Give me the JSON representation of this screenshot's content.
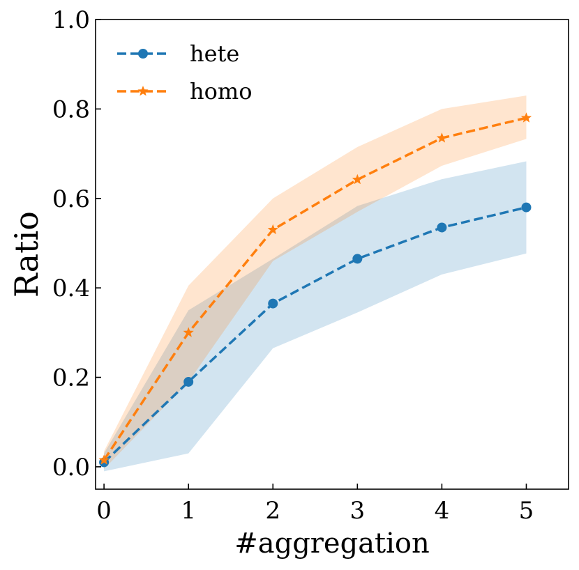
{
  "chart_data": {
    "type": "line",
    "xlabel": "#aggregation",
    "ylabel": "Ratio",
    "xlim": [
      -0.1,
      5.5
    ],
    "ylim": [
      -0.05,
      1.0
    ],
    "xticks": [
      "0",
      "1",
      "2",
      "3",
      "4",
      "5"
    ],
    "yticks": [
      "0.0",
      "0.2",
      "0.4",
      "0.6",
      "0.8",
      "1.0"
    ],
    "x": [
      0,
      1,
      2,
      3,
      4,
      5
    ],
    "grid": false,
    "legend_position": "top-left",
    "series": [
      {
        "name": "hete",
        "color": "#1f77b4",
        "marker": "circle",
        "linestyle": "dashed",
        "values": [
          0.01,
          0.19,
          0.365,
          0.465,
          0.535,
          0.58
        ],
        "band_lower": [
          -0.01,
          0.03,
          0.265,
          0.345,
          0.43,
          0.477
        ],
        "band_upper": [
          0.03,
          0.35,
          0.465,
          0.583,
          0.643,
          0.683
        ]
      },
      {
        "name": "homo",
        "color": "#ff7f0e",
        "marker": "star",
        "linestyle": "dashed",
        "values": [
          0.015,
          0.3,
          0.53,
          0.642,
          0.735,
          0.78
        ],
        "band_lower": [
          -0.005,
          0.19,
          0.46,
          0.57,
          0.673,
          0.733
        ],
        "band_upper": [
          0.035,
          0.405,
          0.6,
          0.715,
          0.8,
          0.83
        ]
      }
    ]
  }
}
